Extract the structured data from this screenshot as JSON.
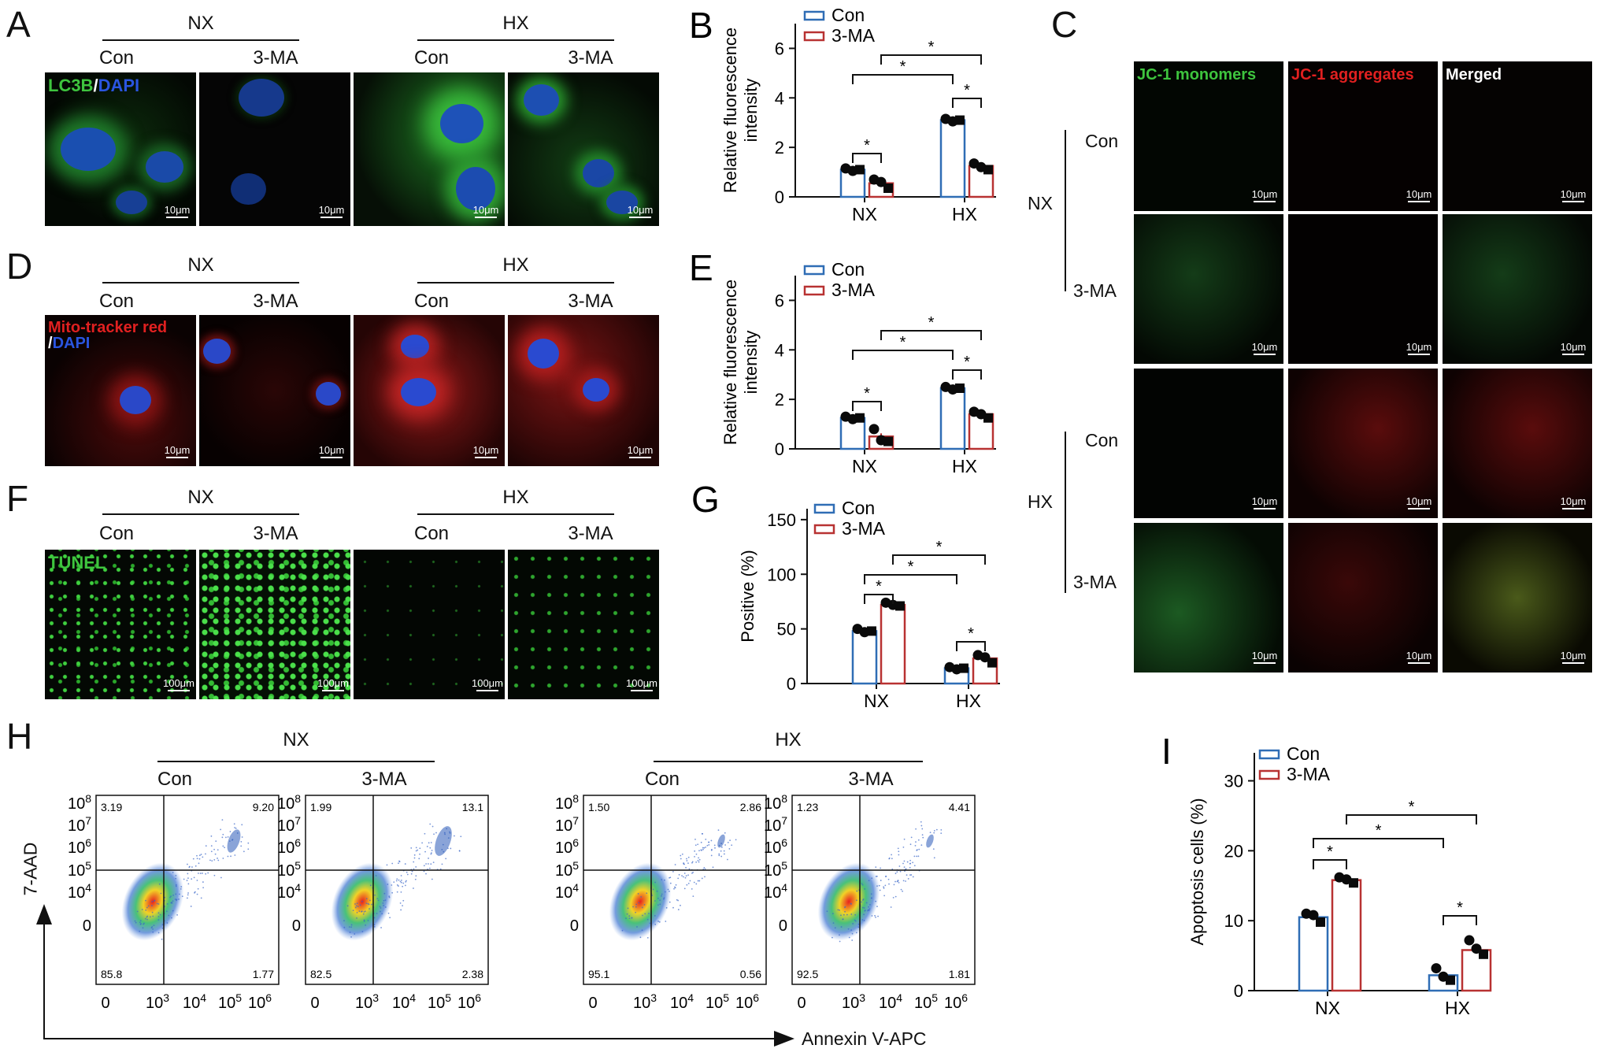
{
  "panels": {
    "A": {
      "letter": "A",
      "groups": [
        "NX",
        "HX"
      ],
      "subs": [
        "Con",
        "3-MA",
        "Con",
        "3-MA"
      ],
      "stain": {
        "a": "LC3B",
        "sep": "/",
        "b": "DAPI"
      },
      "scale": "10μm"
    },
    "D": {
      "letter": "D",
      "groups": [
        "NX",
        "HX"
      ],
      "subs": [
        "Con",
        "3-MA",
        "Con",
        "3-MA"
      ],
      "stain": {
        "a": "Mito-tracker red",
        "sep": "/",
        "b": "DAPI"
      },
      "scale": "10μm"
    },
    "F": {
      "letter": "F",
      "groups": [
        "NX",
        "HX"
      ],
      "subs": [
        "Con",
        "3-MA",
        "Con",
        "3-MA"
      ],
      "stain": {
        "a": "TUNEL"
      },
      "scale": "100μm"
    },
    "C": {
      "letter": "C",
      "columns": [
        "JC-1 monomers",
        "JC-1 aggregates",
        "Merged"
      ],
      "groups": [
        "NX",
        "HX"
      ],
      "rows": [
        "Con",
        "3-MA",
        "Con",
        "3-MA"
      ],
      "scale": "10μm"
    },
    "H": {
      "letter": "H",
      "groups": [
        "NX",
        "HX"
      ],
      "subs": [
        "Con",
        "3-MA",
        "Con",
        "3-MA"
      ],
      "ylabel": "7-AAD",
      "xlabel": "Annexin V-APC",
      "ytick_base": "10",
      "yticks_exp": [
        "8",
        "7",
        "6",
        "5",
        "4"
      ],
      "ytick_zero": "0",
      "xtick_zero": "0",
      "xtick_base": "10",
      "xticks_exp": [
        "3",
        "4",
        "5",
        "6"
      ],
      "quadrants": [
        {
          "ul": "3.19",
          "ur": "9.20",
          "ll": "85.8",
          "lr": "1.77"
        },
        {
          "ul": "1.99",
          "ur": "13.1",
          "ll": "82.5",
          "lr": "2.38"
        },
        {
          "ul": "1.50",
          "ur": "2.86",
          "ll": "95.1",
          "lr": "0.56"
        },
        {
          "ul": "1.23",
          "ur": "4.41",
          "ll": "92.5",
          "lr": "1.81"
        }
      ]
    }
  },
  "colors": {
    "con": "#2f6db5",
    "ma": "#b83232",
    "dot": "#0a0a0a"
  },
  "chart_data": [
    {
      "id": "B",
      "letter": "B",
      "type": "bar",
      "categories": [
        "NX",
        "HX"
      ],
      "ylabel": "Relative fluorescence intensity",
      "ylabel_lines": [
        "Relative fluorescence",
        "intensity"
      ],
      "ylim": [
        0,
        7
      ],
      "yticks": [
        0,
        2,
        4,
        6
      ],
      "star": "*",
      "series": [
        {
          "name": "Con",
          "values": [
            1.1,
            3.1
          ],
          "points": [
            [
              1.15,
              1.05,
              1.1
            ],
            [
              3.15,
              3.05,
              3.1
            ]
          ]
        },
        {
          "name": "3-MA",
          "values": [
            0.55,
            1.25
          ],
          "points": [
            [
              0.7,
              0.6,
              0.35
            ],
            [
              1.35,
              1.2,
              1.1
            ]
          ]
        }
      ]
    },
    {
      "id": "E",
      "letter": "E",
      "type": "bar",
      "categories": [
        "NX",
        "HX"
      ],
      "ylabel": "Relative fluorescence intensity",
      "ylabel_lines": [
        "Relative fluorescence",
        "intensity"
      ],
      "ylim": [
        0,
        7
      ],
      "yticks": [
        0,
        2,
        4,
        6
      ],
      "star": "*",
      "series": [
        {
          "name": "Con",
          "values": [
            1.25,
            2.45
          ],
          "points": [
            [
              1.3,
              1.2,
              1.25
            ],
            [
              2.5,
              2.4,
              2.45
            ]
          ]
        },
        {
          "name": "3-MA",
          "values": [
            0.5,
            1.4
          ],
          "points": [
            [
              0.8,
              0.35,
              0.3
            ],
            [
              1.5,
              1.4,
              1.25
            ]
          ]
        }
      ]
    },
    {
      "id": "G",
      "letter": "G",
      "type": "bar",
      "categories": [
        "NX",
        "HX"
      ],
      "ylabel": "Positive (%)",
      "ylim": [
        0,
        160
      ],
      "yticks": [
        0,
        50,
        100,
        150
      ],
      "star": "*",
      "series": [
        {
          "name": "Con",
          "values": [
            48,
            14
          ],
          "points": [
            [
              50,
              47,
              48
            ],
            [
              15,
              13,
              14
            ]
          ]
        },
        {
          "name": "3-MA",
          "values": [
            72,
            23
          ],
          "points": [
            [
              74,
              72,
              71
            ],
            [
              26,
              24,
              19
            ]
          ]
        }
      ]
    },
    {
      "id": "I",
      "letter": "I",
      "type": "bar",
      "categories": [
        "NX",
        "HX"
      ],
      "ylabel": "Apoptosis cells (%)",
      "ylim": [
        0,
        34
      ],
      "yticks": [
        0,
        10,
        20,
        30
      ],
      "star": "*",
      "series": [
        {
          "name": "Con",
          "values": [
            10.5,
            2.2
          ],
          "points": [
            [
              11,
              10.8,
              9.8
            ],
            [
              3.2,
              2.0,
              1.5
            ]
          ]
        },
        {
          "name": "3-MA",
          "values": [
            15.8,
            5.8
          ],
          "points": [
            [
              16.2,
              15.9,
              15.4
            ],
            [
              7.2,
              6.0,
              5.2
            ]
          ]
        }
      ]
    }
  ]
}
